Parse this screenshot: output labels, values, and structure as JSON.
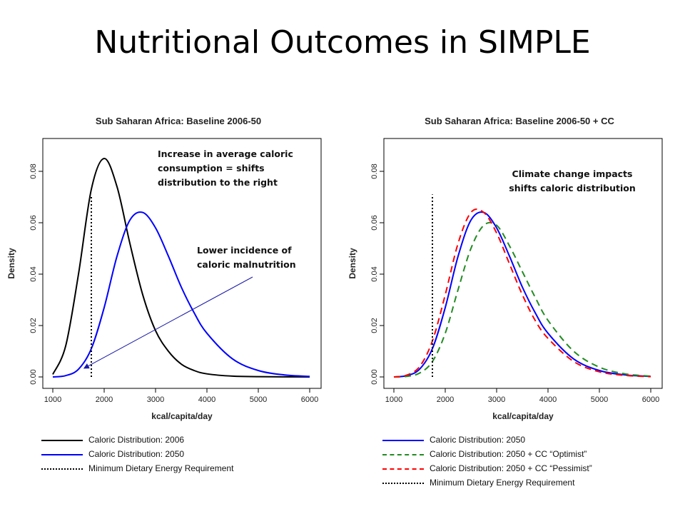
{
  "slide": {
    "title": "Nutritional Outcomes in SIMPLE"
  },
  "chart_data": [
    {
      "type": "line",
      "title": "Sub Saharan Africa: Baseline 2006-50",
      "xlabel": "kcal/capita/day",
      "ylabel": "Density",
      "xlim": [
        1000,
        6000
      ],
      "ylim": [
        0,
        0.09
      ],
      "xticks": [
        "1000",
        "2000",
        "3000",
        "4000",
        "5000",
        "6000"
      ],
      "yticks": [
        "0.00",
        "0.02",
        "0.04",
        "0.06",
        "0.08"
      ],
      "grid": false,
      "vline": {
        "x": 1750,
        "style": "dotted",
        "color": "#000000",
        "y_top": 0.07
      },
      "series": [
        {
          "name": "Caloric Distribution: 2006",
          "color": "#000000",
          "style": "solid",
          "x": [
            1000,
            1250,
            1500,
            1750,
            2000,
            2250,
            2500,
            2750,
            3000,
            3250,
            3500,
            3750,
            4000,
            4500,
            5000,
            6000
          ],
          "y": [
            0.001,
            0.012,
            0.04,
            0.073,
            0.085,
            0.074,
            0.052,
            0.032,
            0.018,
            0.01,
            0.005,
            0.0025,
            0.0012,
            0.0003,
            0.0001,
            0.0
          ]
        },
        {
          "name": "Caloric Distribution: 2050",
          "color": "#0000ff",
          "style": "solid",
          "x": [
            1000,
            1250,
            1500,
            1750,
            2000,
            2250,
            2500,
            2750,
            3000,
            3250,
            3500,
            3750,
            4000,
            4500,
            5000,
            5500,
            6000
          ],
          "y": [
            0.0,
            0.0005,
            0.003,
            0.011,
            0.027,
            0.047,
            0.061,
            0.064,
            0.058,
            0.047,
            0.035,
            0.025,
            0.017,
            0.007,
            0.0025,
            0.0008,
            0.0002
          ]
        }
      ],
      "annotations": [
        {
          "text": [
            "Increase in average caloric",
            "consumption  = shifts",
            "distribution to the right"
          ]
        },
        {
          "text": [
            "Lower incidence of",
            "caloric malnutrition"
          ]
        }
      ],
      "legend": {
        "placement": "below",
        "items": [
          {
            "label": "Caloric Distribution: 2006",
            "color": "#000000",
            "style": "solid"
          },
          {
            "label": "Caloric Distribution: 2050",
            "color": "#0000ff",
            "style": "solid"
          },
          {
            "label": "Minimum Dietary Energy Requirement",
            "color": "#000000",
            "style": "dotted"
          }
        ]
      }
    },
    {
      "type": "line",
      "title": "Sub Saharan Africa: Baseline 2006-50 + CC",
      "xlabel": "kcal/capita/day",
      "ylabel": "Density",
      "xlim": [
        1000,
        6000
      ],
      "ylim": [
        0,
        0.09
      ],
      "xticks": [
        "1000",
        "2000",
        "3000",
        "4000",
        "5000",
        "6000"
      ],
      "yticks": [
        "0.00",
        "0.02",
        "0.04",
        "0.06",
        "0.08"
      ],
      "grid": false,
      "vline": {
        "x": 1750,
        "style": "dotted",
        "color": "#000000",
        "y_top": 0.071
      },
      "series": [
        {
          "name": "Caloric Distribution: 2050",
          "color": "#0000ff",
          "style": "solid",
          "x": [
            1000,
            1250,
            1500,
            1750,
            2000,
            2250,
            2500,
            2750,
            3000,
            3250,
            3500,
            3750,
            4000,
            4500,
            5000,
            5500,
            6000
          ],
          "y": [
            0.0,
            0.0005,
            0.003,
            0.011,
            0.027,
            0.047,
            0.061,
            0.064,
            0.058,
            0.047,
            0.035,
            0.025,
            0.017,
            0.007,
            0.0025,
            0.0008,
            0.0002
          ]
        },
        {
          "name": "Caloric Distribution: 2050 + CC “Optimist”",
          "color": "#228b22",
          "style": "dashed",
          "x": [
            1000,
            1250,
            1500,
            1750,
            2000,
            2250,
            2500,
            2750,
            3000,
            3250,
            3500,
            3750,
            4000,
            4500,
            5000,
            5500,
            6000
          ],
          "y": [
            0.0,
            0.0002,
            0.0015,
            0.006,
            0.017,
            0.034,
            0.05,
            0.059,
            0.059,
            0.051,
            0.041,
            0.031,
            0.022,
            0.01,
            0.0038,
            0.0012,
            0.0003
          ]
        },
        {
          "name": "Caloric Distribution: 2050 + CC “Pessimist”",
          "color": "#ff0000",
          "style": "dashed",
          "x": [
            1000,
            1250,
            1500,
            1750,
            2000,
            2250,
            2500,
            2750,
            3000,
            3250,
            3500,
            3750,
            4000,
            4500,
            5000,
            5500,
            6000
          ],
          "y": [
            0.0,
            0.0007,
            0.004,
            0.014,
            0.032,
            0.052,
            0.064,
            0.064,
            0.056,
            0.044,
            0.032,
            0.022,
            0.015,
            0.006,
            0.002,
            0.0006,
            0.0001
          ]
        }
      ],
      "annotations": [
        {
          "text": [
            "Climate change impacts",
            "shifts caloric distribution"
          ]
        }
      ],
      "legend": {
        "placement": "below",
        "items": [
          {
            "label": "Caloric Distribution: 2050",
            "color": "#0000ff",
            "style": "solid"
          },
          {
            "label": "Caloric Distribution: 2050 + CC “Optimist”",
            "color": "#228b22",
            "style": "dashed"
          },
          {
            "label": "Caloric Distribution: 2050 + CC “Pessimist”",
            "color": "#ff0000",
            "style": "dashed"
          },
          {
            "label": "Minimum Dietary Energy Requirement",
            "color": "#000000",
            "style": "dotted"
          }
        ]
      }
    }
  ]
}
